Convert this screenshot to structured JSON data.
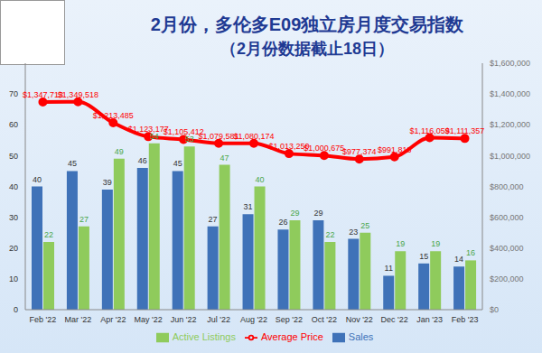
{
  "chart_data": {
    "type": "bar",
    "title": "2月份，多伦多E09独立房月度交易指数",
    "subtitle": "（2月份数据截止18日）",
    "categories": [
      "Feb '22",
      "Mar '22",
      "Apr '22",
      "May '22",
      "Jun '22",
      "Jul '22",
      "Aug '22",
      "Sep '22",
      "Oct '22",
      "Nov '22",
      "Dec '22",
      "Jan '23",
      "Feb '23"
    ],
    "series": [
      {
        "name": "Sales",
        "type": "bar",
        "color": "#3f72b8",
        "values": [
          40,
          45,
          39,
          46,
          45,
          27,
          31,
          26,
          29,
          23,
          11,
          15,
          14
        ]
      },
      {
        "name": "Active Listings",
        "type": "bar",
        "color": "#8fcb5c",
        "values": [
          22,
          27,
          49,
          54,
          53,
          47,
          40,
          29,
          22,
          25,
          19,
          19,
          16
        ]
      },
      {
        "name": "Average Price",
        "type": "line",
        "axis": "y2",
        "color": "#ff0000",
        "values": [
          1347713,
          1349518,
          1213485,
          1123177,
          1105412,
          1079581,
          1080174,
          1013250,
          1000675,
          977374,
          991818,
          1116059,
          1111357
        ],
        "value_labels": [
          "$1,347,713",
          "$1,349,518",
          "$1,213,485",
          "$1,123,177",
          "$1,105,412",
          "$1,079,581",
          "$1,080,174",
          "$1,013,250",
          "$1,000,675",
          "$977,374",
          "$991,818",
          "$1,116,059",
          "$1,111,357"
        ]
      }
    ],
    "ylim": [
      0,
      80
    ],
    "yticks": [
      0,
      10,
      20,
      30,
      40,
      50,
      60,
      70
    ],
    "y2lim": [
      0,
      1600000
    ],
    "y2ticks": [
      {
        "value": 0,
        "label": "$0"
      },
      {
        "value": 200000,
        "label": "$200,000"
      },
      {
        "value": 400000,
        "label": "$400,000"
      },
      {
        "value": 600000,
        "label": "$600,000"
      },
      {
        "value": 800000,
        "label": "$800,000"
      },
      {
        "value": 1000000,
        "label": "$1,000,000"
      },
      {
        "value": 1200000,
        "label": "$1,200,000"
      },
      {
        "value": 1400000,
        "label": "$1,400,000"
      },
      {
        "value": 1600000,
        "label": "$1,600,000"
      }
    ],
    "data_labels": true,
    "legend": "bottom",
    "grid": false
  }
}
